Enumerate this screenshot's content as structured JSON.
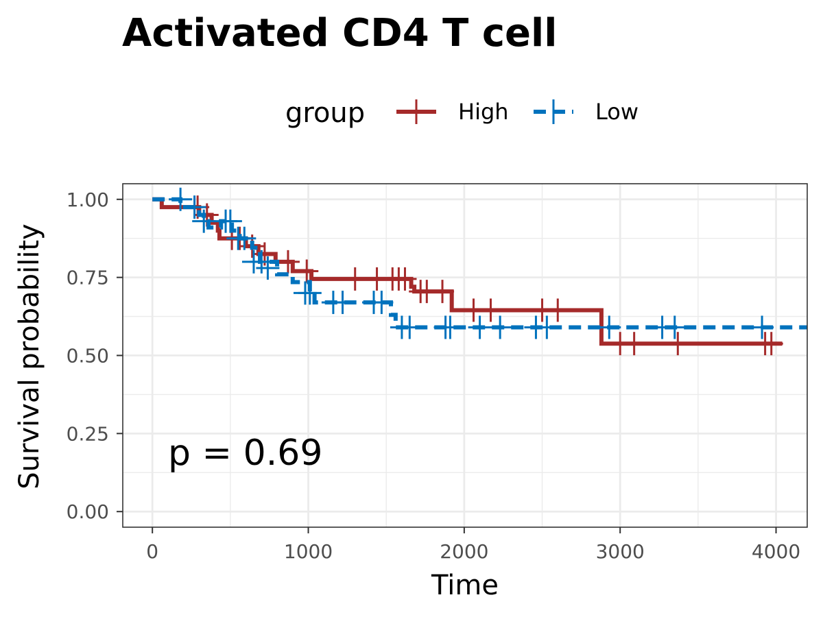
{
  "chart_data": {
    "type": "line",
    "subtype": "kaplan-meier-step",
    "title": "Activated CD4 T cell",
    "xlabel": "Time",
    "ylabel": "Survival probability",
    "xlim": [
      -190,
      4200
    ],
    "ylim": [
      -0.05,
      1.05
    ],
    "x_ticks": [
      0,
      1000,
      2000,
      3000,
      4000
    ],
    "x_tick_labels": [
      "0",
      "1000",
      "2000",
      "3000",
      "4000"
    ],
    "y_ticks": [
      0,
      0.25,
      0.5,
      0.75,
      1.0
    ],
    "y_tick_labels": [
      "0.00",
      "0.25",
      "0.50",
      "0.75",
      "1.00"
    ],
    "grid": true,
    "legend": {
      "title": "group",
      "position": "top"
    },
    "annotation": "p = 0.69",
    "series": [
      {
        "name": "High",
        "color": "#A52A2A",
        "dash": "solid",
        "steps": [
          [
            0,
            1.0
          ],
          [
            60,
            0.975
          ],
          [
            300,
            0.95
          ],
          [
            380,
            0.925
          ],
          [
            420,
            0.9
          ],
          [
            420,
            0.9
          ],
          [
            430,
            0.875
          ],
          [
            530,
            0.875
          ],
          [
            600,
            0.85
          ],
          [
            680,
            0.825
          ],
          [
            790,
            0.8
          ],
          [
            900,
            0.77
          ],
          [
            1020,
            0.745
          ],
          [
            1660,
            0.72
          ],
          [
            1680,
            0.705
          ],
          [
            1920,
            0.645
          ],
          [
            2880,
            0.538
          ],
          [
            4040,
            0.538
          ]
        ],
        "censors": [
          [
            290,
            0.975
          ],
          [
            350,
            0.95
          ],
          [
            510,
            0.875
          ],
          [
            560,
            0.875
          ],
          [
            640,
            0.85
          ],
          [
            720,
            0.825
          ],
          [
            870,
            0.8
          ],
          [
            990,
            0.77
          ],
          [
            1300,
            0.745
          ],
          [
            1440,
            0.745
          ],
          [
            1540,
            0.745
          ],
          [
            1580,
            0.745
          ],
          [
            1620,
            0.745
          ],
          [
            1720,
            0.705
          ],
          [
            1760,
            0.705
          ],
          [
            1860,
            0.705
          ],
          [
            2060,
            0.645
          ],
          [
            2170,
            0.645
          ],
          [
            2500,
            0.645
          ],
          [
            2600,
            0.645
          ],
          [
            3000,
            0.538
          ],
          [
            3090,
            0.538
          ],
          [
            3370,
            0.538
          ],
          [
            3930,
            0.538
          ],
          [
            3970,
            0.538
          ]
        ]
      },
      {
        "name": "Low",
        "color": "#0072BD",
        "dash": "dashed",
        "steps": [
          [
            0,
            1.0
          ],
          [
            180,
            0.975
          ],
          [
            300,
            0.95
          ],
          [
            330,
            0.93
          ],
          [
            360,
            0.91
          ],
          [
            440,
            0.93
          ],
          [
            510,
            0.9
          ],
          [
            560,
            0.875
          ],
          [
            640,
            0.845
          ],
          [
            690,
            0.8
          ],
          [
            800,
            0.76
          ],
          [
            900,
            0.735
          ],
          [
            1010,
            0.7
          ],
          [
            1040,
            0.67
          ],
          [
            1530,
            0.63
          ],
          [
            1560,
            0.59
          ],
          [
            4200,
            0.59
          ]
        ],
        "censors": [
          [
            180,
            1.0
          ],
          [
            270,
            0.975
          ],
          [
            330,
            0.93
          ],
          [
            470,
            0.93
          ],
          [
            500,
            0.93
          ],
          [
            550,
            0.875
          ],
          [
            590,
            0.875
          ],
          [
            650,
            0.8
          ],
          [
            700,
            0.8
          ],
          [
            740,
            0.78
          ],
          [
            980,
            0.7
          ],
          [
            1010,
            0.7
          ],
          [
            1160,
            0.67
          ],
          [
            1220,
            0.67
          ],
          [
            1420,
            0.67
          ],
          [
            1470,
            0.67
          ],
          [
            1600,
            0.59
          ],
          [
            1650,
            0.59
          ],
          [
            1880,
            0.59
          ],
          [
            1910,
            0.59
          ],
          [
            2100,
            0.59
          ],
          [
            2230,
            0.59
          ],
          [
            2460,
            0.59
          ],
          [
            2530,
            0.59
          ],
          [
            2930,
            0.59
          ],
          [
            3270,
            0.59
          ],
          [
            3350,
            0.59
          ],
          [
            3910,
            0.59
          ]
        ]
      }
    ]
  }
}
